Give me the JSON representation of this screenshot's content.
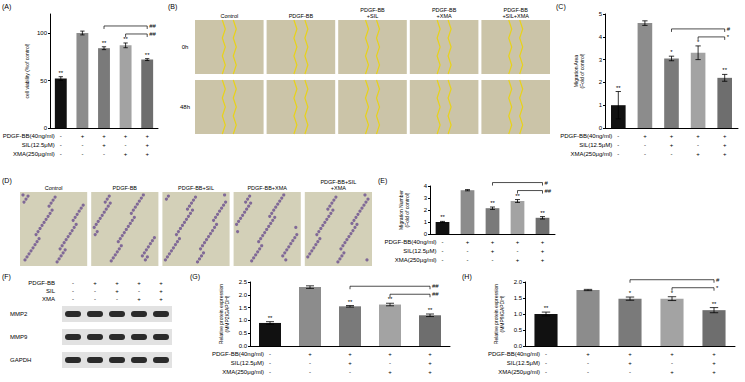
{
  "chart_data": [
    {
      "type": "bar",
      "title": "(A)",
      "y_label": "cell viability (%of control)",
      "conditions": [
        {
          "label": "PDGF-BB(40ng/ml)",
          "signs": [
            "-",
            "+",
            "+",
            "+",
            "+"
          ]
        },
        {
          "label": "SIL(12.5μM)",
          "signs": [
            "-",
            "-",
            "+",
            "-",
            "+"
          ]
        },
        {
          "label": "XMA(250μg/ml)",
          "signs": [
            "-",
            "-",
            "-",
            "+",
            "+"
          ]
        }
      ],
      "values": [
        52,
        100,
        84,
        87,
        72
      ],
      "errors": [
        2,
        2,
        1.5,
        2.5,
        1
      ],
      "bar_labels": [
        "**",
        null,
        "**",
        "**",
        "**"
      ],
      "brackets": [
        {
          "from": 2,
          "to": 4,
          "label": "##"
        },
        {
          "from": 3,
          "to": 4,
          "label": "##"
        }
      ],
      "ylim": [
        0,
        120
      ],
      "yticks": [
        0,
        50,
        100
      ],
      "grid": false,
      "colors": [
        "#111111",
        "#8c8c8c",
        "#7a7a7a",
        "#a3a3a3",
        "#6e6e6e"
      ]
    },
    {
      "type": "bar",
      "title": "(C)",
      "y_label": "Migration Area\n(Fold of control)",
      "conditions": [
        {
          "label": "PDGF-BB(40ng/ml)",
          "signs": [
            "-",
            "+",
            "+",
            "+",
            "+"
          ]
        },
        {
          "label": "SIL(12.5μM)",
          "signs": [
            "-",
            "-",
            "+",
            "-",
            "+"
          ]
        },
        {
          "label": "XMA(250μg/ml)",
          "signs": [
            "-",
            "-",
            "-",
            "+",
            "+"
          ]
        }
      ],
      "values": [
        1.0,
        4.6,
        3.05,
        3.3,
        2.2
      ],
      "errors": [
        0.6,
        0.1,
        0.1,
        0.3,
        0.15
      ],
      "bar_labels": [
        "**",
        null,
        "*",
        "*",
        "**"
      ],
      "brackets": [
        {
          "from": 2,
          "to": 4,
          "label": "#"
        },
        {
          "from": 3,
          "to": 4,
          "label": "*"
        }
      ],
      "ylim": [
        0,
        5
      ],
      "yticks": [
        0,
        1,
        2,
        3,
        4,
        5
      ],
      "grid": false,
      "colors": [
        "#111111",
        "#8c8c8c",
        "#7a7a7a",
        "#a3a3a3",
        "#6e6e6e"
      ]
    },
    {
      "type": "bar",
      "title": "(E)",
      "y_label": "Migration Number\n(Fold of control)",
      "conditions": [
        {
          "label": "PDGF-BB(40ng/ml)",
          "signs": [
            "-",
            "+",
            "+",
            "+",
            "+"
          ]
        },
        {
          "label": "SIL(12.5μM)",
          "signs": [
            "-",
            "-",
            "+",
            "-",
            "+"
          ]
        },
        {
          "label": "XMA(250μg/ml)",
          "signs": [
            "-",
            "-",
            "-",
            "+",
            "+"
          ]
        }
      ],
      "values": [
        1.0,
        3.65,
        2.15,
        2.75,
        1.35
      ],
      "errors": [
        0.05,
        0.05,
        0.1,
        0.12,
        0.1
      ],
      "bar_labels": [
        "**",
        null,
        "**",
        "**",
        "**"
      ],
      "brackets": [
        {
          "from": 2,
          "to": 4,
          "label": "#"
        },
        {
          "from": 3,
          "to": 4,
          "label": "##"
        }
      ],
      "ylim": [
        0,
        4
      ],
      "yticks": [
        0,
        1,
        2,
        3,
        4
      ],
      "grid": false,
      "colors": [
        "#111111",
        "#8c8c8c",
        "#7a7a7a",
        "#a3a3a3",
        "#6e6e6e"
      ]
    },
    {
      "type": "bar",
      "title": "(G)",
      "y_label": "Relative protein expression\n(MMP2/GAPDH)",
      "conditions": [
        {
          "label": "PDGF-BB(40ng/ml)",
          "signs": [
            "-",
            "+",
            "+",
            "+",
            "+"
          ]
        },
        {
          "label": "SIL(12.5μM)",
          "signs": [
            "-",
            "-",
            "+",
            "-",
            "+"
          ]
        },
        {
          "label": "XMA(250μg/ml)",
          "signs": [
            "-",
            "-",
            "-",
            "+",
            "+"
          ]
        }
      ],
      "values": [
        0.9,
        2.3,
        1.55,
        1.62,
        1.2
      ],
      "errors": [
        0.05,
        0.05,
        0.03,
        0.05,
        0.05
      ],
      "bar_labels": [
        "**",
        null,
        "**",
        "**",
        "**"
      ],
      "brackets": [
        {
          "from": 2,
          "to": 4,
          "label": "##"
        },
        {
          "from": 3,
          "to": 4,
          "label": "##"
        }
      ],
      "ylim": [
        0,
        2.5
      ],
      "yticks": [
        {
          "value": 0,
          "label": "0.0"
        },
        0.5,
        {
          "value": 1,
          "label": "1.0"
        },
        1.5,
        {
          "value": 2,
          "label": "2.0"
        },
        2.5
      ],
      "grid": false,
      "colors": [
        "#111111",
        "#8c8c8c",
        "#7a7a7a",
        "#a3a3a3",
        "#6e6e6e"
      ]
    },
    {
      "type": "bar",
      "title": "(H)",
      "y_label": "Relative protein expression\n(MMP9/GAPDH)",
      "conditions": [
        {
          "label": "PDGF-BB(40ng/ml)",
          "signs": [
            "-",
            "+",
            "+",
            "+",
            "+"
          ]
        },
        {
          "label": "SIL(12.5μM)",
          "signs": [
            "-",
            "-",
            "+",
            "-",
            "+"
          ]
        },
        {
          "label": "XMA(250μg/ml)",
          "signs": [
            "-",
            "-",
            "-",
            "+",
            "+"
          ]
        }
      ],
      "values": [
        1.0,
        1.75,
        1.48,
        1.48,
        1.12
      ],
      "errors": [
        0.06,
        0.02,
        0.05,
        0.06,
        0.08
      ],
      "bar_labels": [
        "**",
        null,
        "*",
        "*",
        "**"
      ],
      "brackets": [
        {
          "from": 2,
          "to": 4,
          "label": "#"
        },
        {
          "from": 3,
          "to": 4,
          "label": "*"
        }
      ],
      "ylim": [
        0,
        2
      ],
      "yticks": [
        {
          "value": 0,
          "label": "0.0"
        },
        0.5,
        {
          "value": 1,
          "label": "1.0"
        },
        1.5,
        {
          "value": 2,
          "label": "2.0"
        }
      ],
      "grid": false,
      "colors": [
        "#111111",
        "#8c8c8c",
        "#7a7a7a",
        "#a3a3a3",
        "#6e6e6e"
      ]
    }
  ],
  "scratch_assay": {
    "title": "(B)",
    "columns": [
      "Control",
      "PDGF-BB",
      "PDGF-BB\n+SIL",
      "PDGF-BB\n+XMA",
      "PDGF-BB\n+SIL+XMA"
    ],
    "rows": [
      "0h",
      "48h"
    ]
  },
  "transwell": {
    "title": "(D)",
    "columns": [
      "Control",
      "PDGF-BB",
      "PDGF-BB+SIL",
      "PDGF-BB+XMA",
      "PDGF-BB+SIL\n+XMA"
    ]
  },
  "western_blot": {
    "title": "(F)",
    "conditions": [
      {
        "label": "PDGF-BB",
        "signs": [
          "-",
          "+",
          "+",
          "+",
          "+"
        ]
      },
      {
        "label": "SIL",
        "signs": [
          "-",
          "-",
          "+",
          "-",
          "+"
        ]
      },
      {
        "label": "XMA",
        "signs": [
          "-",
          "-",
          "-",
          "+",
          "+"
        ]
      }
    ],
    "bands": [
      "MMP2",
      "MMP9",
      "GAPDH"
    ]
  }
}
